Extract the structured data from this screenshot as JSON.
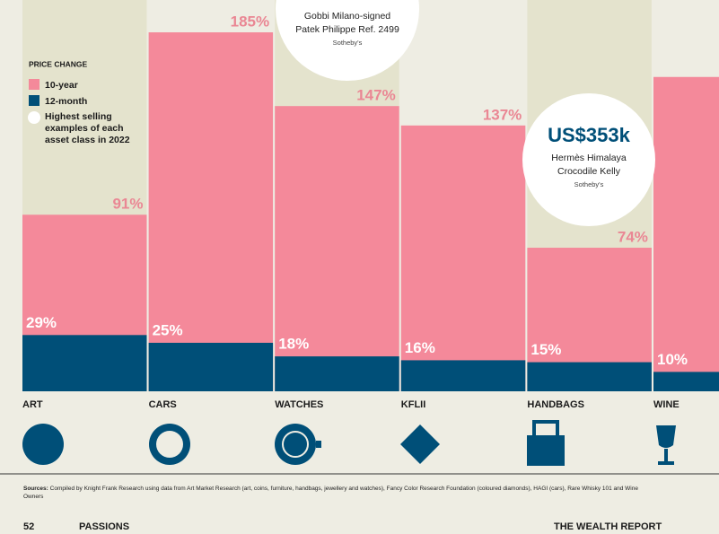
{
  "chart_data": {
    "type": "bar",
    "categories": [
      "ART",
      "CARS",
      "WATCHES",
      "KFLII",
      "HANDBAGS",
      "WINE"
    ],
    "series": [
      {
        "name": "10-year",
        "color": "#f4899a",
        "values": [
          91,
          185,
          147,
          137,
          74,
          162
        ],
        "value_labels": [
          "91%",
          "185%",
          "147%",
          "137%",
          "74%",
          null
        ]
      },
      {
        "name": "12-month",
        "color": "#004f78",
        "values": [
          29,
          25,
          18,
          16,
          15,
          10
        ],
        "value_labels": [
          "29%",
          "25%",
          "18%",
          "16%",
          "15%",
          "10%"
        ]
      }
    ],
    "ylim": [
      0,
      200
    ],
    "legend_title": "PRICE CHANGE",
    "legend_note": "Highest selling examples of each asset class in 2022",
    "annotations": [
      {
        "lines": [
          "Gobbi Milano-signed",
          "Patek Philippe Ref. 2499"
        ],
        "source": "Sotheby's"
      },
      {
        "headline": "US$353k",
        "lines": [
          "Hermès Himalaya",
          "Crocodile Kelly"
        ],
        "source": "Sotheby's"
      }
    ]
  },
  "footer": {
    "sources_label": "Sources:",
    "sources": "Compiled by Knight Frank Research using data from Art Market Research (art, coins, furniture, handbags, jewellery and watches), Fancy Color Research Foundation (coloured diamonds), HAGI (cars), Rare Whisky 101 and Wine Owners",
    "page": "52",
    "section": "PASSIONS",
    "publication": "THE WEALTH REPORT"
  }
}
